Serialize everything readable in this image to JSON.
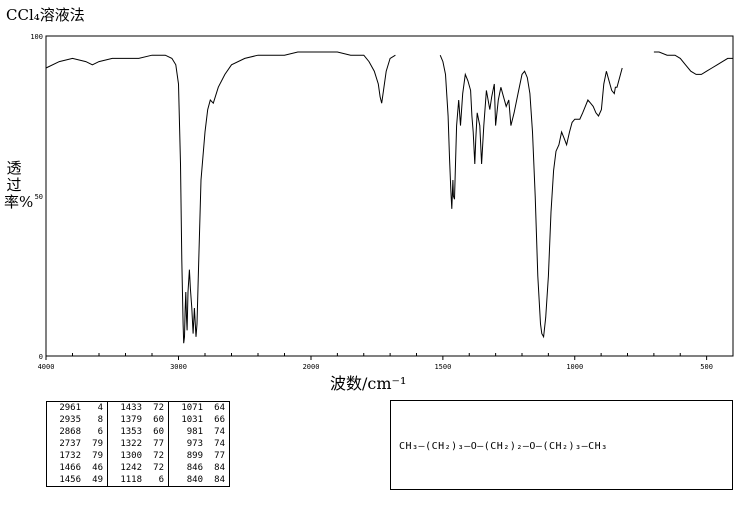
{
  "title": "CCl₄溶液法",
  "chart_data": {
    "type": "line",
    "ylabel": "透过率%",
    "xlabel": "波数/cm⁻¹",
    "xlim": [
      4000,
      400
    ],
    "ylim": [
      0,
      100
    ],
    "x_ticks": [
      "4000",
      "3000",
      "2000",
      "1500",
      "1000",
      "500"
    ],
    "y_ticks": [
      "100",
      "50",
      "0"
    ],
    "series": [
      {
        "x": [
          4000,
          3900,
          3800,
          3700,
          3650,
          3600,
          3500,
          3400,
          3300,
          3200,
          3100,
          3050,
          3020,
          3000,
          2985,
          2975,
          2965,
          2961,
          2955,
          2950,
          2945,
          2940,
          2935,
          2928,
          2918,
          2910,
          2900,
          2890,
          2880,
          2868,
          2860,
          2850,
          2830,
          2800,
          2780,
          2760,
          2737,
          2700,
          2650,
          2600,
          2500,
          2400,
          2300,
          2200,
          2100,
          2000,
          1900,
          1850,
          1800,
          1780,
          1760,
          1745,
          1738,
          1732,
          1725,
          1715,
          1700,
          1680
        ],
        "y": [
          90,
          92,
          93,
          92,
          91,
          92,
          93,
          93,
          93,
          94,
          94,
          93,
          91,
          85,
          60,
          30,
          10,
          4,
          6,
          14,
          20,
          12,
          8,
          20,
          27,
          21,
          15,
          7,
          15,
          6,
          10,
          26,
          55,
          70,
          77,
          80,
          79,
          84,
          88,
          91,
          93,
          94,
          94,
          94,
          95,
          95,
          95,
          94,
          94,
          92,
          89,
          85,
          81,
          79,
          83,
          89,
          93,
          94
        ]
      },
      {
        "x": [
          1510,
          1500,
          1490,
          1480,
          1475,
          1470,
          1466,
          1462,
          1460,
          1456,
          1452,
          1448,
          1440,
          1433,
          1425,
          1415,
          1405,
          1395,
          1390,
          1385,
          1379,
          1375,
          1370,
          1360,
          1353,
          1345,
          1335,
          1322,
          1315,
          1305,
          1300,
          1290,
          1280,
          1270,
          1260,
          1250,
          1242,
          1230,
          1215,
          1200,
          1190,
          1180,
          1170,
          1160,
          1150,
          1140,
          1130,
          1125,
          1118,
          1110,
          1100,
          1090,
          1080,
          1071,
          1060,
          1050,
          1040,
          1031,
          1020,
          1010,
          1000,
          990,
          981,
          970,
          960,
          950,
          940,
          930,
          920,
          910,
          899,
          890,
          880,
          870,
          860,
          850,
          846,
          840,
          830,
          820
        ],
        "y": [
          94,
          92,
          88,
          75,
          62,
          52,
          46,
          55,
          50,
          49,
          60,
          72,
          80,
          72,
          82,
          88,
          86,
          83,
          75,
          70,
          60,
          68,
          76,
          72,
          60,
          72,
          83,
          77,
          81,
          85,
          72,
          80,
          84,
          81,
          78,
          80,
          72,
          76,
          82,
          88,
          89,
          87,
          82,
          70,
          50,
          25,
          10,
          7,
          6,
          12,
          25,
          45,
          58,
          64,
          66,
          70,
          68,
          66,
          70,
          73,
          74,
          74,
          74,
          76,
          78,
          80,
          79,
          78,
          76,
          75,
          77,
          85,
          89,
          86,
          83,
          82,
          84,
          84,
          87,
          90
        ]
      },
      {
        "x": [
          700,
          680,
          650,
          620,
          600,
          580,
          560,
          540,
          520,
          500,
          480,
          460,
          440,
          420,
          400
        ],
        "y": [
          95,
          95,
          94,
          94,
          93,
          91,
          89,
          88,
          88,
          89,
          90,
          91,
          92,
          93,
          93
        ]
      }
    ],
    "peak_table": [
      [
        "2961",
        "4"
      ],
      [
        "2935",
        "8"
      ],
      [
        "2868",
        "6"
      ],
      [
        "2737",
        "79"
      ],
      [
        "1732",
        "79"
      ],
      [
        "1466",
        "46"
      ],
      [
        "1456",
        "49"
      ],
      [
        "1433",
        "72"
      ],
      [
        "1379",
        "60"
      ],
      [
        "1353",
        "60"
      ],
      [
        "1322",
        "77"
      ],
      [
        "1300",
        "72"
      ],
      [
        "1242",
        "72"
      ],
      [
        "1118",
        "6"
      ],
      [
        "1071",
        "64"
      ],
      [
        "1031",
        "66"
      ],
      [
        "981",
        "74"
      ],
      [
        "973",
        "74"
      ],
      [
        "899",
        "77"
      ],
      [
        "846",
        "84"
      ],
      [
        "840",
        "84"
      ]
    ]
  },
  "structure": "CH₃—(CH₂)₃—O—(CH₂)₂—O—(CH₂)₃—CH₃",
  "colors": {
    "line": "#000000",
    "background": "#ffffff"
  }
}
